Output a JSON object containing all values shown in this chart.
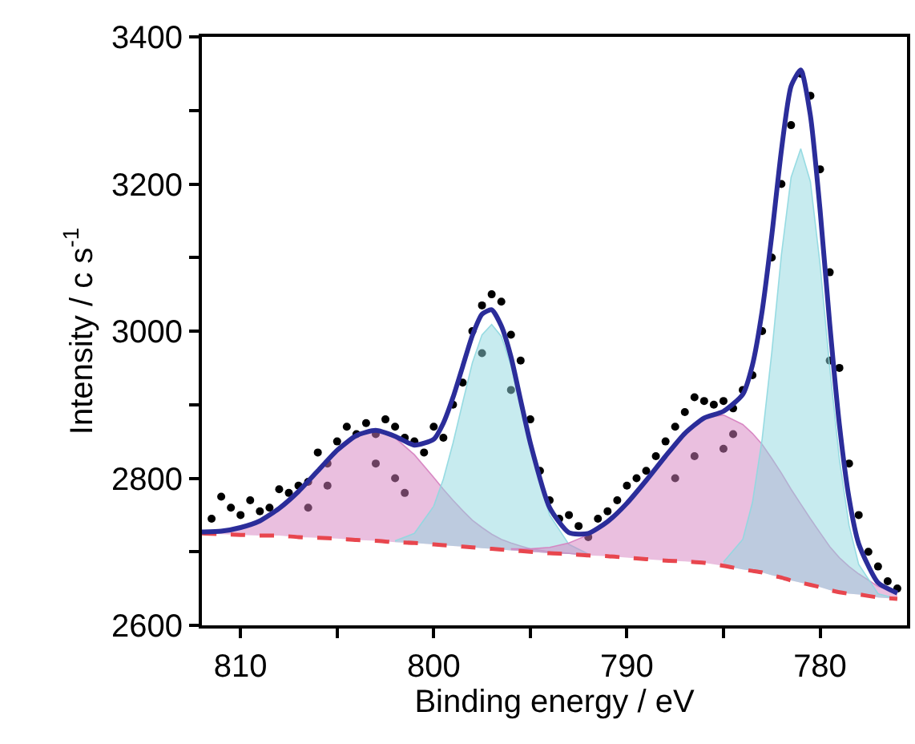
{
  "chart_data": {
    "type": "line",
    "xlabel": "Binding energy / eV",
    "ylabel": "Intensity / c s$^{-1}$",
    "xlim": [
      812,
      775.5
    ],
    "ylim": [
      2600,
      3400
    ],
    "xticks": [
      810,
      {
        "value": 805,
        "label": null
      },
      800,
      {
        "value": 795,
        "label": null
      },
      790,
      {
        "value": 785,
        "label": null
      },
      780
    ],
    "yticks": [
      2600,
      {
        "value": 2700,
        "label": null
      },
      2800,
      {
        "value": 2900,
        "label": null
      },
      3000,
      {
        "value": 3100,
        "label": null
      },
      3200,
      {
        "value": 3300,
        "label": null
      },
      3400
    ],
    "x": [
      812,
      811,
      810,
      809,
      808,
      807,
      806,
      805,
      804,
      803,
      802,
      801,
      800,
      799.5,
      799,
      798.5,
      798,
      797.5,
      797,
      796.5,
      796,
      795.5,
      795,
      794,
      793,
      792,
      791,
      790,
      789,
      788,
      787,
      786,
      785,
      784,
      783.5,
      783,
      782.5,
      782,
      781.5,
      781,
      780.5,
      780,
      779.5,
      779,
      778.5,
      778,
      777,
      776
    ],
    "series": [
      {
        "type": "scatter",
        "marker": "circle",
        "color": "#000000",
        "x": [
          811.5,
          811,
          810.5,
          810,
          809.5,
          809,
          808.5,
          808,
          807.5,
          807,
          806.5,
          806,
          805.5,
          805,
          804.5,
          804,
          803.5,
          803,
          802.5,
          802,
          801.5,
          801,
          800.5,
          800,
          799.5,
          799,
          798.5,
          798,
          797.5,
          797,
          796.5,
          796,
          795.5,
          795,
          794.5,
          794,
          793.5,
          793,
          792.5,
          792,
          791.5,
          791,
          790.5,
          790,
          789.5,
          789,
          788.5,
          788,
          787.5,
          787,
          786.5,
          786,
          785.5,
          785,
          784.5,
          784,
          783.5,
          783,
          782.5,
          782,
          781.5,
          781,
          780.5,
          780,
          779.5,
          779,
          778.5,
          778,
          777.5,
          777,
          776.5,
          776,
          803,
          802,
          801.5,
          785,
          784.5,
          786.5,
          787.5,
          797.5,
          796,
          779.5,
          806.5,
          805.5
        ],
        "values": [
          2745,
          2775,
          2760,
          2750,
          2770,
          2755,
          2760,
          2785,
          2780,
          2790,
          2795,
          2835,
          2820,
          2850,
          2870,
          2860,
          2875,
          2860,
          2880,
          2870,
          2855,
          2850,
          2835,
          2870,
          2855,
          2900,
          2930,
          3000,
          3035,
          3050,
          3040,
          2995,
          2960,
          2880,
          2810,
          2770,
          2745,
          2750,
          2735,
          2720,
          2745,
          2755,
          2770,
          2790,
          2800,
          2810,
          2830,
          2850,
          2870,
          2890,
          2910,
          2905,
          2900,
          2905,
          2895,
          2920,
          2940,
          3000,
          3100,
          3200,
          3280,
          3350,
          3320,
          3220,
          3080,
          2950,
          2820,
          2750,
          2700,
          2680,
          2660,
          2650,
          2820,
          2800,
          2780,
          2840,
          2860,
          2830,
          2800,
          2970,
          2920,
          2960,
          2760,
          2790
        ]
      },
      {
        "type": "area",
        "color": "#d580bf",
        "values": [
          2727,
          2728,
          2733,
          2742,
          2759,
          2782,
          2810,
          2838,
          2858,
          2865,
          2855,
          2832,
          2801,
          2785,
          2770,
          2756,
          2743,
          2733,
          2724,
          2717,
          2712,
          2708,
          2704,
          2700,
          2698,
          2695,
          null,
          null,
          null,
          null,
          null,
          null,
          null,
          null,
          null,
          null,
          null,
          null,
          null,
          null,
          null,
          null,
          null,
          null,
          null,
          null,
          null,
          null
        ]
      },
      {
        "type": "area",
        "color": "#8fd8e0",
        "values": [
          null,
          null,
          null,
          null,
          null,
          null,
          null,
          null,
          null,
          null,
          2715,
          2725,
          2762,
          2799,
          2848,
          2903,
          2957,
          2995,
          3009,
          2993,
          2953,
          2897,
          2840,
          2750,
          2710,
          2697,
          null,
          null,
          null,
          null,
          null,
          null,
          null,
          null,
          null,
          null,
          null,
          null,
          null,
          null,
          null,
          null,
          null,
          null,
          null,
          null,
          null,
          null
        ]
      },
      {
        "type": "area",
        "color": "#d580bf",
        "values": [
          null,
          null,
          null,
          null,
          null,
          null,
          null,
          null,
          null,
          null,
          null,
          null,
          null,
          null,
          null,
          null,
          null,
          null,
          null,
          null,
          2704,
          2704,
          2704,
          2706,
          2712,
          2723,
          2741,
          2766,
          2797,
          2830,
          2861,
          2882,
          2886,
          2873,
          2861,
          2846,
          2827,
          2807,
          2785,
          2765,
          2745,
          2726,
          2707,
          2692,
          2680,
          2670,
          2653,
          2644
        ]
      },
      {
        "type": "area",
        "color": "#8fd8e0",
        "values": [
          null,
          null,
          null,
          null,
          null,
          null,
          null,
          null,
          null,
          null,
          null,
          null,
          null,
          null,
          null,
          null,
          null,
          null,
          null,
          null,
          null,
          null,
          null,
          null,
          null,
          null,
          null,
          null,
          null,
          null,
          null,
          null,
          2686,
          2717,
          2767,
          2853,
          2971,
          3104,
          3209,
          3248,
          3203,
          3091,
          2951,
          2826,
          2736,
          2683,
          2643,
          2636
        ]
      },
      {
        "type": "line",
        "line_style": "dashed",
        "color": "#e8464e",
        "values": [
          2725,
          2724,
          2723,
          2722,
          2722,
          2720,
          2719,
          2718,
          2716,
          2715,
          2713,
          2712,
          2710,
          2709,
          2708,
          2707,
          2706,
          2705,
          2704,
          2703,
          2702,
          2701,
          2700,
          2698,
          2697,
          2695,
          2694,
          2692,
          2690,
          2688,
          2687,
          2685,
          2681,
          2676,
          2674,
          2672,
          2668,
          2665,
          2661,
          2658,
          2655,
          2652,
          2648,
          2645,
          2643,
          2642,
          2638,
          2636
        ]
      },
      {
        "line_style": "solid",
        "color": "#2b2d9a",
        "values": [
          2727,
          2728,
          2733,
          2742,
          2759,
          2782,
          2810,
          2838,
          2858,
          2865,
          2857,
          2845,
          2853,
          2875,
          2910,
          2952,
          2994,
          3023,
          3029,
          3007,
          2965,
          2906,
          2848,
          2760,
          2726,
          2725,
          2741,
          2766,
          2797,
          2830,
          2861,
          2882,
          2891,
          2914,
          2954,
          3027,
          3130,
          3246,
          3333,
          3355,
          3293,
          3165,
          3010,
          2873,
          2773,
          2711,
          2658,
          2644
        ]
      }
    ]
  }
}
